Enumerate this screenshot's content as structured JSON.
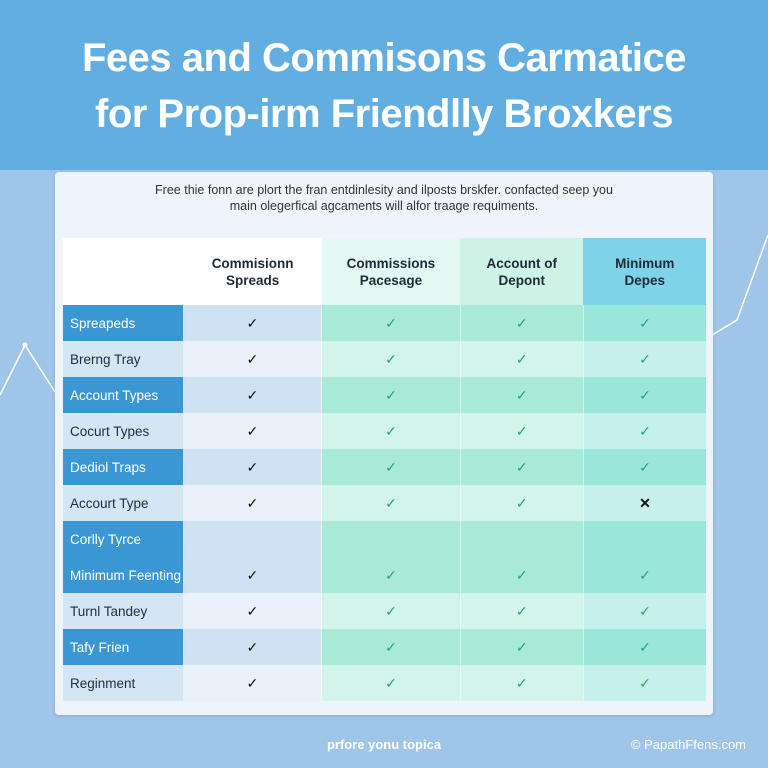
{
  "header": {
    "title_line1": "Fees and Commisons Carmatice",
    "title_line2": "for Prop-irm Friendlly Broxkers"
  },
  "card": {
    "subtitle_line1": "Free thie fonn are plort the fran entdinlesity and ilposts brskfer. confacted seep you",
    "subtitle_line2": "main olegerfical agcaments will alfor traage requiments."
  },
  "table": {
    "columns": [
      "",
      "Commisionn Spreads",
      "Commissions Pacesage",
      "Account of Depont",
      "Minimum Depes"
    ],
    "rows": [
      {
        "label": "Spreapeds",
        "style": "dark",
        "marks": [
          "check",
          "check",
          "check",
          "check"
        ]
      },
      {
        "label": "Brerng Tray",
        "style": "light",
        "marks": [
          "check",
          "check",
          "check",
          "check"
        ]
      },
      {
        "label": "Account Types",
        "style": "dark",
        "marks": [
          "check",
          "check",
          "check",
          "check"
        ]
      },
      {
        "label": "Cocurt Types",
        "style": "light",
        "marks": [
          "check",
          "check",
          "check",
          "check"
        ]
      },
      {
        "label": "Dediol Traps",
        "style": "dark",
        "marks": [
          "check",
          "check",
          "check",
          "check"
        ]
      },
      {
        "label": "Accourt Type",
        "style": "light",
        "marks": [
          "check",
          "check",
          "check",
          "cross"
        ]
      },
      {
        "label": "Corlly Tyrce",
        "style": "dark",
        "marks": [
          "",
          "",
          "",
          ""
        ]
      },
      {
        "label": "Minimum Feenting",
        "style": "dark",
        "marks": [
          "check",
          "check",
          "check",
          "check"
        ]
      },
      {
        "label": "Turnl Tandey",
        "style": "light",
        "marks": [
          "check",
          "check",
          "check",
          "check"
        ]
      },
      {
        "label": "Tafy Frien",
        "style": "dark",
        "marks": [
          "check",
          "check",
          "check",
          "check"
        ]
      },
      {
        "label": "Reginment",
        "style": "light",
        "marks": [
          "check",
          "check",
          "check",
          "check"
        ]
      }
    ]
  },
  "footer": {
    "center": "prfore yonu topica",
    "right": "© PapathFfens.com"
  },
  "colors": {
    "header": "#62aee0",
    "row_dark": "#3b97d4",
    "check_green": "#21a875",
    "background": "#9fc5e8"
  }
}
